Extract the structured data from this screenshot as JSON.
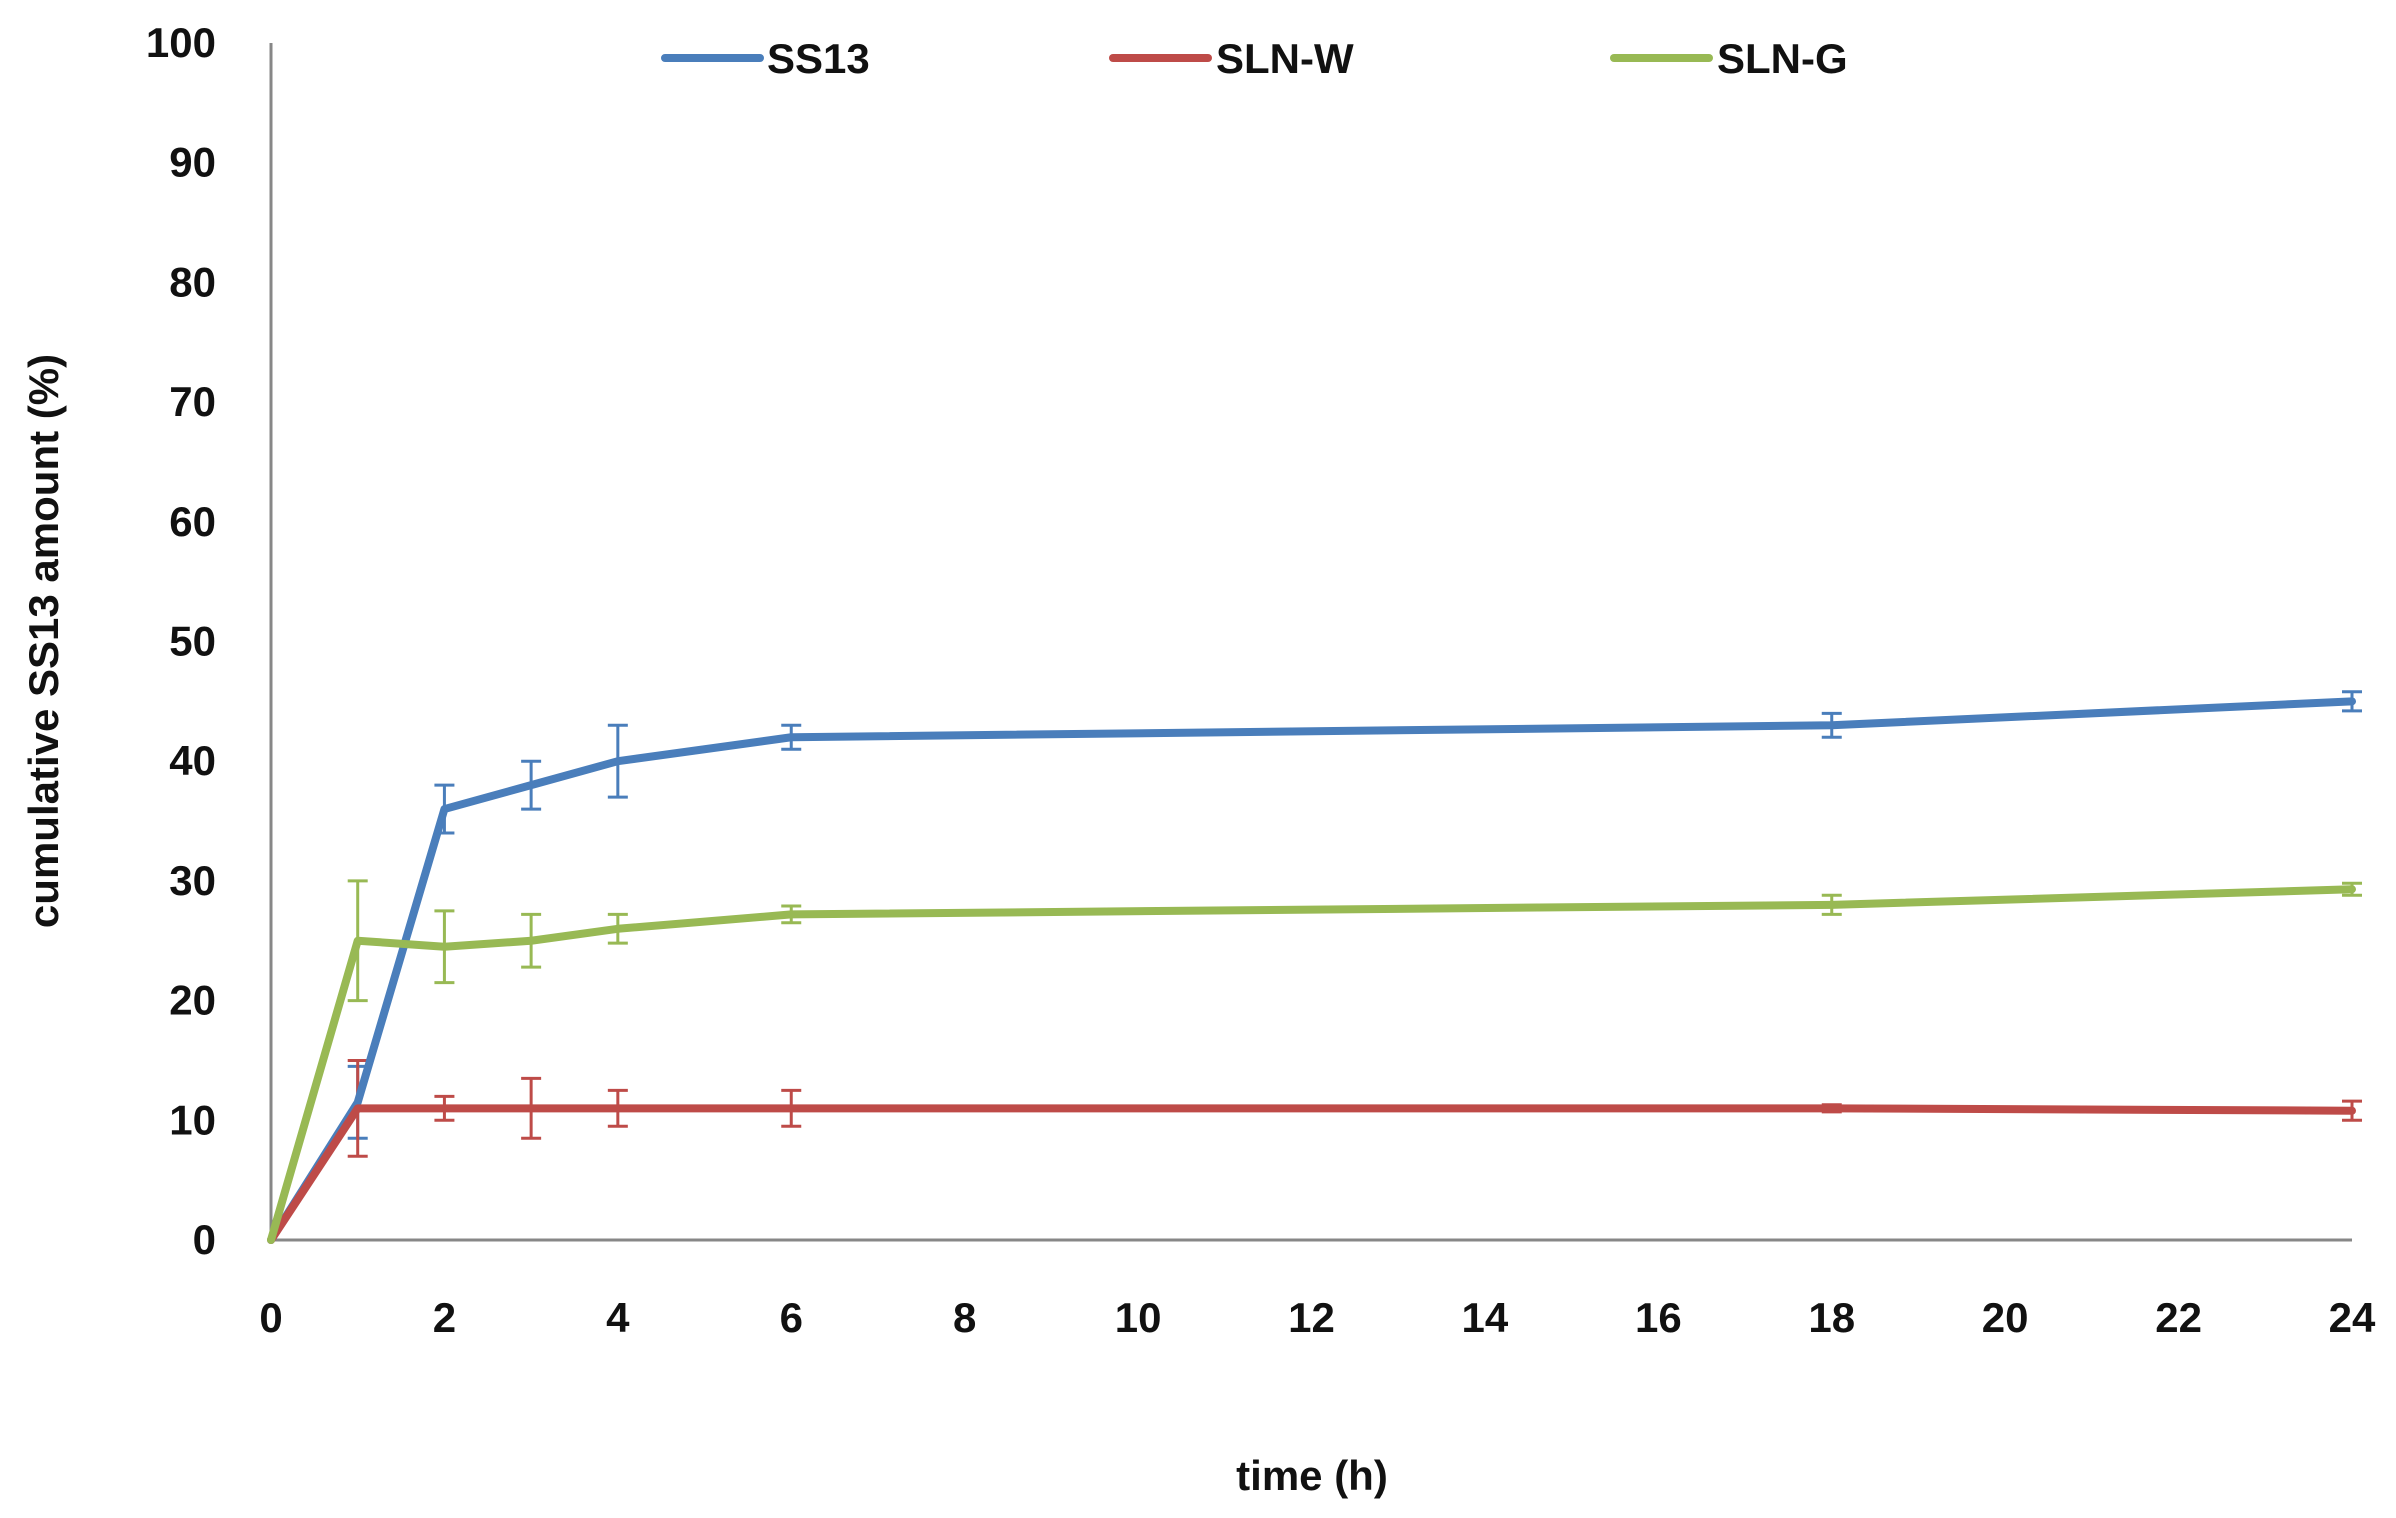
{
  "chart_data": {
    "type": "line",
    "title": "",
    "xlabel": "time (h)",
    "ylabel": "cumulative SS13 amount (%)",
    "ylim": [
      0,
      100
    ],
    "yticks": [
      0,
      10,
      20,
      30,
      40,
      50,
      60,
      70,
      80,
      90,
      100
    ],
    "xtick_labels": [
      "0",
      "2",
      "4",
      "6",
      "8",
      "10",
      "12",
      "14",
      "16",
      "18",
      "20",
      "22",
      "24"
    ],
    "x": [
      "0",
      "1",
      "2",
      "3",
      "4",
      "6",
      "18",
      "24"
    ],
    "grid": false,
    "legend_position": "top",
    "series": [
      {
        "name": "SS13",
        "color": "#4a7ebb",
        "values": [
          0,
          11.5,
          36,
          38,
          40,
          42,
          43,
          45
        ],
        "errors": [
          0,
          3,
          2,
          2,
          3,
          1,
          1,
          0.8
        ]
      },
      {
        "name": "SLN-W",
        "color": "#be4b48",
        "values": [
          0,
          11,
          11,
          11,
          11,
          11,
          11,
          10.8
        ],
        "errors": [
          0,
          4,
          1,
          2.5,
          1.5,
          1.5,
          0.3,
          0.8
        ]
      },
      {
        "name": "SLN-G",
        "color": "#98b954",
        "values": [
          0,
          25,
          24.5,
          25,
          26,
          27.2,
          28,
          29.3
        ],
        "errors": [
          0,
          5,
          3,
          2.2,
          1.2,
          0.7,
          0.8,
          0.5
        ]
      }
    ]
  }
}
